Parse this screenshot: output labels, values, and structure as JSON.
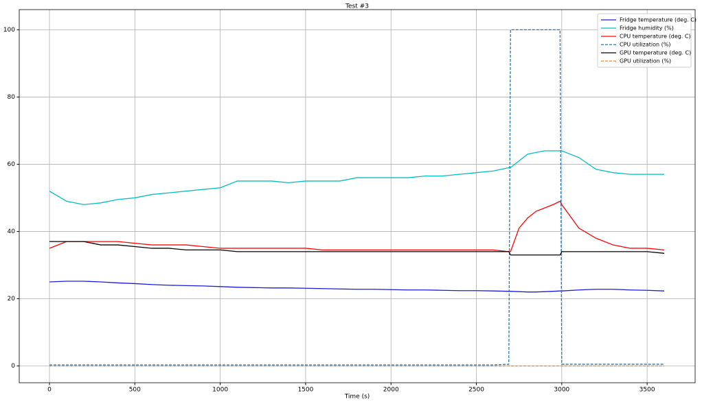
{
  "chart_data": {
    "type": "line",
    "title": "Test #3",
    "x_label": "Time (s)",
    "x": [
      0,
      100,
      200,
      300,
      400,
      500,
      600,
      700,
      800,
      900,
      1000,
      1100,
      1200,
      1300,
      1400,
      1500,
      1600,
      1700,
      1800,
      1900,
      2000,
      2100,
      2200,
      2300,
      2400,
      2500,
      2600,
      2690,
      2700,
      2750,
      2800,
      2850,
      2900,
      2950,
      2990,
      3000,
      3100,
      3200,
      3300,
      3400,
      3500,
      3600
    ],
    "series": [
      {
        "name": "Fridge temperature (deg. C)",
        "color": "#1a1adf",
        "linestyle": "solid",
        "values": [
          25,
          25.2,
          25.2,
          25,
          24.7,
          24.5,
          24.2,
          24,
          23.9,
          23.8,
          23.6,
          23.4,
          23.3,
          23.2,
          23.2,
          23.1,
          23,
          22.9,
          22.8,
          22.8,
          22.7,
          22.6,
          22.6,
          22.5,
          22.4,
          22.4,
          22.3,
          22.2,
          22.2,
          22.1,
          22,
          22,
          22.1,
          22.2,
          22.3,
          22.3,
          22.6,
          22.8,
          22.8,
          22.6,
          22.5,
          22.3
        ]
      },
      {
        "name": "Fridge humidity (%)",
        "color": "#00bfbf",
        "linestyle": "solid",
        "values": [
          52,
          49,
          48,
          48.5,
          49.5,
          50,
          51,
          51.5,
          52,
          52.5,
          53,
          55,
          55,
          55,
          54.5,
          55,
          55,
          55,
          56,
          56,
          56,
          56,
          56.5,
          56.5,
          57,
          57.5,
          58,
          59,
          59,
          61,
          63,
          63.5,
          64,
          64,
          64,
          64,
          62,
          58.5,
          57.5,
          57,
          57,
          57
        ]
      },
      {
        "name": "CPU temperature (deg. C)",
        "color": "#ff0000",
        "linestyle": "solid",
        "values": [
          35,
          37,
          37,
          37,
          37,
          36.5,
          36,
          36,
          36,
          35.5,
          35,
          35,
          35,
          35,
          35,
          35,
          34.5,
          34.5,
          34.5,
          34.5,
          34.5,
          34.5,
          34.5,
          34.5,
          34.5,
          34.5,
          34.5,
          34,
          34,
          41,
          44,
          46,
          47,
          48,
          49,
          48,
          41,
          38,
          36,
          35,
          35,
          34.5
        ]
      },
      {
        "name": "CPU utilization (%)",
        "color": "#1f77b4",
        "linestyle": "dashed",
        "values": [
          0.3,
          0.3,
          0.3,
          0.3,
          0.3,
          0.3,
          0.3,
          0.3,
          0.3,
          0.3,
          0.3,
          0.3,
          0.3,
          0.3,
          0.3,
          0.3,
          0.3,
          0.3,
          0.3,
          0.3,
          0.3,
          0.3,
          0.3,
          0.3,
          0.3,
          0.3,
          0.3,
          0.5,
          100,
          100,
          100,
          100,
          100,
          100,
          100,
          0.5,
          0.5,
          0.5,
          0.5,
          0.5,
          0.5,
          0.5
        ]
      },
      {
        "name": "GPU temperature (deg. C)",
        "color": "#000000",
        "linestyle": "solid",
        "values": [
          37,
          37,
          37,
          36,
          36,
          35.5,
          35,
          35,
          34.5,
          34.5,
          34.5,
          34,
          34,
          34,
          34,
          34,
          34,
          34,
          34,
          34,
          34,
          34,
          34,
          34,
          34,
          34,
          34,
          34,
          33,
          33,
          33,
          33,
          33,
          33,
          33,
          34,
          34,
          34,
          34,
          34,
          34,
          33.5
        ]
      },
      {
        "name": "GPU utilization (%)",
        "color": "#ff7f0e",
        "linestyle": "dashed",
        "values": [
          0,
          0,
          0,
          0,
          0,
          0,
          0,
          0,
          0,
          0,
          0,
          0,
          0,
          0,
          0,
          0,
          0,
          0,
          0,
          0,
          0,
          0,
          0,
          0,
          0,
          0,
          0,
          0,
          0,
          0,
          0,
          0,
          0,
          0,
          0,
          0,
          0,
          0,
          0,
          0,
          0,
          0
        ]
      }
    ],
    "xlim": [
      -177,
      3781
    ],
    "ylim": [
      -5,
      106
    ],
    "xticks": [
      0,
      500,
      1000,
      1500,
      2000,
      2500,
      3000,
      3500
    ],
    "yticks": [
      0,
      20,
      40,
      60,
      80,
      100
    ],
    "grid": true,
    "legend": "upper right"
  }
}
